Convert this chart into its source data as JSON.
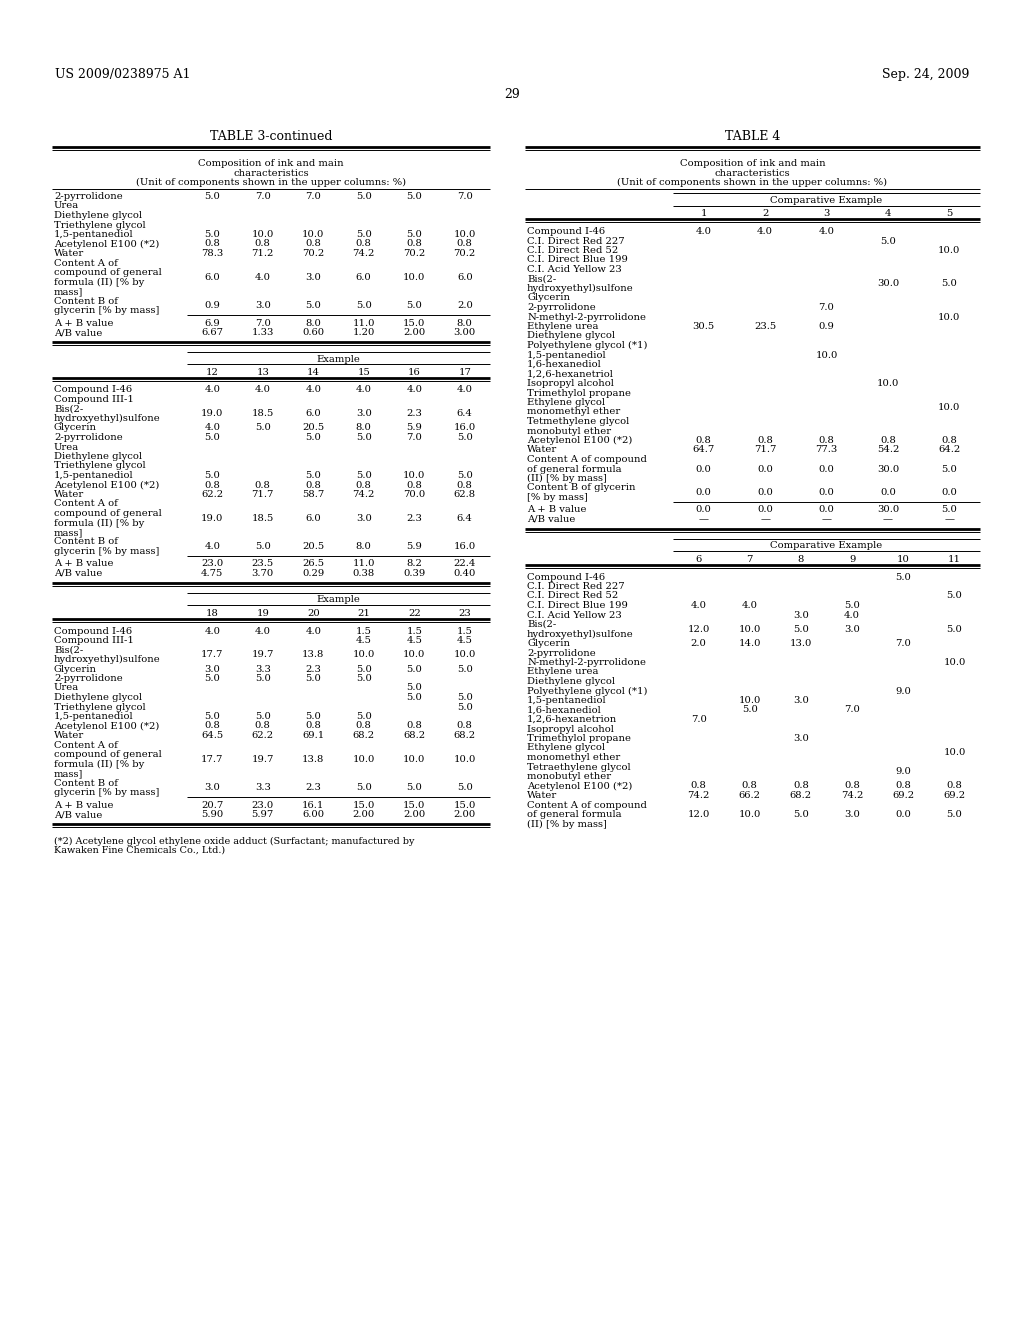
{
  "bg": "#ffffff",
  "header_left": "US 2009/0238975 A1",
  "header_right": "Sep. 24, 2009",
  "page_number": "29",
  "t3_title": "TABLE 3-continued",
  "t3_sub1": "Composition of ink and main",
  "t3_sub2": "characteristics",
  "t3_sub3": "(Unit of components shown in the upper columns: %)",
  "t4_title": "TABLE 4",
  "t4_sub1": "Composition of ink and main",
  "t4_sub2": "characteristics",
  "t4_sub3": "(Unit of components shown in the upper columns: %)",
  "footnote1": "(*2) Acetylene glycol ethylene oxide adduct (Surfactant; manufactured by",
  "footnote2": "Kawaken Fine Chemicals Co., Ltd.)"
}
